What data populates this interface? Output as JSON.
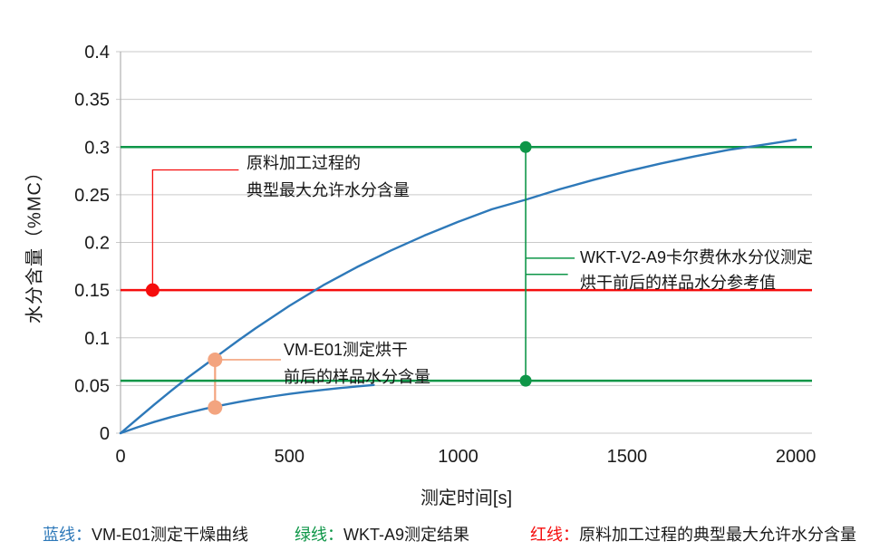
{
  "chart_data": {
    "type": "line",
    "title": "",
    "xlabel": "测定时间[s]",
    "ylabel": "水分含量（%MC）",
    "xlim": [
      0,
      2048
    ],
    "ylim": [
      0,
      0.4
    ],
    "grid": "horizontal",
    "legend_position": "bottom",
    "x_ticks": [
      {
        "v": 0,
        "label": "0"
      },
      {
        "v": 500,
        "label": "500"
      },
      {
        "v": 1000,
        "label": "1000"
      },
      {
        "v": 1500,
        "label": "1500"
      },
      {
        "v": 2000,
        "label": "2000"
      }
    ],
    "y_ticks": [
      {
        "v": 0,
        "label": "0"
      },
      {
        "v": 0.05,
        "label": "0.05"
      },
      {
        "v": 0.1,
        "label": "0.1"
      },
      {
        "v": 0.15,
        "label": "0.15"
      },
      {
        "v": 0.2,
        "label": "0.2"
      },
      {
        "v": 0.25,
        "label": "0.25"
      },
      {
        "v": 0.3,
        "label": "0.3"
      },
      {
        "v": 0.35,
        "label": "0.35"
      },
      {
        "v": 0.4,
        "label": "0.4"
      }
    ],
    "series": [
      {
        "name": "VM-E01测定干燥曲线（烘干前）",
        "type": "line",
        "color": "#2e79b9",
        "width": 2.4,
        "points": [
          [
            0,
            0
          ],
          [
            50,
            0.015
          ],
          [
            100,
            0.03
          ],
          [
            150,
            0.0445
          ],
          [
            200,
            0.0585
          ],
          [
            250,
            0.0715
          ],
          [
            300,
            0.0845
          ],
          [
            350,
            0.0975
          ],
          [
            400,
            0.11
          ],
          [
            500,
            0.1335
          ],
          [
            600,
            0.155
          ],
          [
            700,
            0.1741
          ],
          [
            800,
            0.1914
          ],
          [
            900,
            0.2072
          ],
          [
            1000,
            0.2216
          ],
          [
            1100,
            0.2348
          ],
          [
            1200,
            0.2448
          ],
          [
            1300,
            0.2557
          ],
          [
            1400,
            0.2655
          ],
          [
            1500,
            0.2745
          ],
          [
            1600,
            0.2827
          ],
          [
            1700,
            0.2902
          ],
          [
            1800,
            0.297
          ],
          [
            1900,
            0.3022
          ],
          [
            2000,
            0.3077
          ]
        ]
      },
      {
        "name": "VM-E01测定干燥曲线（烘干后）",
        "type": "line",
        "color": "#2e79b9",
        "width": 2.4,
        "points": [
          [
            0,
            0
          ],
          [
            50,
            0.0062
          ],
          [
            100,
            0.0118
          ],
          [
            150,
            0.0169
          ],
          [
            200,
            0.0214
          ],
          [
            250,
            0.0256
          ],
          [
            300,
            0.0293
          ],
          [
            350,
            0.0327
          ],
          [
            400,
            0.0358
          ],
          [
            450,
            0.0386
          ],
          [
            500,
            0.0411
          ],
          [
            550,
            0.0434
          ],
          [
            600,
            0.0454
          ],
          [
            650,
            0.0473
          ],
          [
            700,
            0.049
          ],
          [
            750,
            0.0505
          ]
        ]
      },
      {
        "name": "WKT-A9测定结果（烘干前参考值）",
        "type": "hline",
        "y": 0.3,
        "color": "#0e9648",
        "width": 2.4
      },
      {
        "name": "WKT-A9测定结果（烘干后参考值）",
        "type": "hline",
        "y": 0.055,
        "color": "#0e9648",
        "width": 2.4
      },
      {
        "name": "原料加工过程的典型最大允许水分含量",
        "type": "hline",
        "y": 0.15,
        "color": "#f50d0d",
        "width": 2.4
      }
    ],
    "connectors": [
      {
        "name": "vm-sample-connector",
        "x": 280,
        "y1": 0.077,
        "y2": 0.027,
        "color": "#f3a47f",
        "width": 2.2,
        "front": false
      },
      {
        "name": "wkt-sample-connector",
        "x": 1200,
        "y1": 0.3,
        "y2": 0.055,
        "color": "#0e9648",
        "width": 1.6,
        "front": true
      }
    ],
    "leaders": [
      {
        "name": "max-allowed-leader",
        "color": "#f50d0d",
        "width": 1.3,
        "points": [
          [
            95,
            0.15
          ],
          [
            95,
            0.276
          ],
          [
            350,
            0.276
          ]
        ]
      },
      {
        "name": "vm-annotation-leader",
        "color": "#f3a47f",
        "width": 1.6,
        "points": [
          [
            280,
            0.077
          ],
          [
            475,
            0.077
          ]
        ]
      },
      {
        "name": "wkt-annotation-leader-1",
        "color": "#0e9648",
        "width": 1.4,
        "points": [
          [
            1200,
            0.1835
          ],
          [
            1345,
            0.1835
          ]
        ]
      },
      {
        "name": "wkt-annotation-leader-2",
        "color": "#0e9648",
        "width": 1.4,
        "points": [
          [
            1200,
            0.1665
          ],
          [
            1325,
            0.1665
          ]
        ]
      }
    ],
    "markers": [
      {
        "name": "wkt-before-point",
        "x": 1200,
        "y": 0.3,
        "r": 6.5,
        "color": "#0e9648"
      },
      {
        "name": "wkt-after-point",
        "x": 1200,
        "y": 0.055,
        "r": 6.5,
        "color": "#0e9648"
      },
      {
        "name": "max-allowed-point",
        "x": 95,
        "y": 0.15,
        "r": 7.5,
        "color": "#f50d0d"
      },
      {
        "name": "vm-before-point",
        "x": 280,
        "y": 0.077,
        "r": 8,
        "color": "#f3a47f"
      },
      {
        "name": "vm-after-point",
        "x": 280,
        "y": 0.027,
        "r": 8,
        "color": "#f3a47f"
      }
    ],
    "colors": {
      "grid": "#c9c9c9",
      "axis": "#b0b0b0",
      "tick_text": "#1a1a1a"
    }
  },
  "annotations": {
    "red": {
      "lines": [
        "原料加工过程的",
        "典型最大允许水分含量"
      ]
    },
    "wkt": {
      "lines": [
        "WKT-V2-A9卡尔费休水分仪测定",
        "烘干前后的样品水分参考值"
      ]
    },
    "vm": {
      "lines": [
        "VM-E01测定烘干",
        "前后的样品水分含量"
      ]
    }
  },
  "legend": [
    {
      "prefix": "蓝线：",
      "label": "VM-E01测定干燥曲线",
      "color": "#2e79b9"
    },
    {
      "prefix": "绿线：",
      "label": "WKT-A9测定结果",
      "color": "#0e9648"
    },
    {
      "prefix": "红线：",
      "label": "原料加工过程的典型最大允许水分含量",
      "color": "#f50d0d"
    }
  ]
}
